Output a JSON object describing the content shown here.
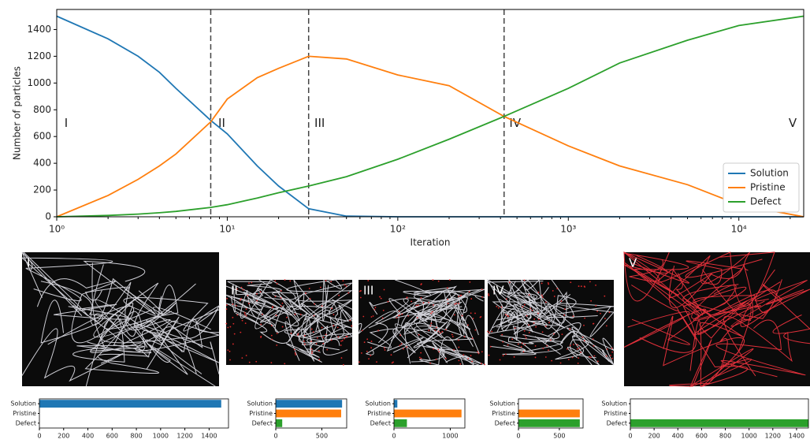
{
  "chart_data": [
    {
      "type": "line",
      "xlabel": "Iteration",
      "ylabel": "Number of particles",
      "xscale": "log",
      "x": [
        1,
        2,
        3,
        4,
        5,
        8,
        10,
        15,
        20,
        30,
        50,
        100,
        200,
        420,
        1000,
        2000,
        5000,
        10000,
        24000
      ],
      "series": [
        {
          "name": "Solution",
          "color": "#1f77b4",
          "values": [
            1500,
            1330,
            1200,
            1080,
            960,
            720,
            620,
            380,
            230,
            60,
            5,
            0,
            0,
            0,
            0,
            0,
            0,
            0,
            0
          ]
        },
        {
          "name": "Pristine",
          "color": "#ff7f0e",
          "values": [
            0,
            160,
            280,
            380,
            470,
            710,
            880,
            1040,
            1110,
            1200,
            1180,
            1060,
            980,
            750,
            530,
            380,
            240,
            90,
            0
          ]
        },
        {
          "name": "Defect",
          "color": "#2ca02c",
          "values": [
            0,
            10,
            20,
            30,
            40,
            70,
            90,
            140,
            180,
            230,
            300,
            430,
            580,
            750,
            960,
            1150,
            1320,
            1430,
            1500
          ]
        }
      ],
      "xlim": [
        1,
        24000
      ],
      "ylim": [
        0,
        1550
      ],
      "xticks": [
        {
          "value": 1,
          "label": "10⁰"
        },
        {
          "value": 10,
          "label": "10¹"
        },
        {
          "value": 100,
          "label": "10²"
        },
        {
          "value": 1000,
          "label": "10³"
        },
        {
          "value": 10000,
          "label": "10⁴"
        }
      ],
      "yticks": [
        0,
        200,
        400,
        600,
        800,
        1000,
        1200,
        1400
      ],
      "phase_boundaries": [
        8,
        30,
        420
      ],
      "phase_labels": [
        "I",
        "II",
        "III",
        "IV",
        "V"
      ],
      "legend": "lower right"
    },
    {
      "type": "barh",
      "categories": [
        "Solution",
        "Pristine",
        "Defect"
      ],
      "values": [
        1500,
        0,
        0
      ],
      "xlim": [
        0,
        1560
      ],
      "xticks": [
        0,
        200,
        400,
        600,
        800,
        1000,
        1200,
        1400
      ]
    },
    {
      "type": "barh",
      "categories": [
        "Solution",
        "Pristine",
        "Defect"
      ],
      "values": [
        720,
        710,
        70
      ],
      "xlim": [
        0,
        770
      ],
      "xticks": [
        0,
        500
      ]
    },
    {
      "type": "barh",
      "categories": [
        "Solution",
        "Pristine",
        "Defect"
      ],
      "values": [
        60,
        1200,
        230
      ],
      "xlim": [
        0,
        1260
      ],
      "xticks": [
        0,
        1000
      ]
    },
    {
      "type": "barh",
      "categories": [
        "Solution",
        "Pristine",
        "Defect"
      ],
      "values": [
        0,
        750,
        750
      ],
      "xlim": [
        0,
        790
      ],
      "xticks": [
        0,
        500
      ]
    },
    {
      "type": "barh",
      "categories": [
        "Solution",
        "Pristine",
        "Defect"
      ],
      "values": [
        0,
        0,
        1500
      ],
      "xlim": [
        0,
        1500
      ],
      "xticks": [
        0,
        200,
        400,
        600,
        800,
        1000,
        1200,
        1400
      ]
    }
  ]
}
